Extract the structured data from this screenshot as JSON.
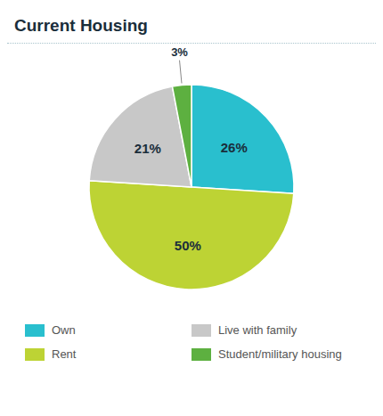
{
  "chart_data": {
    "type": "pie",
    "title": "Current Housing",
    "categories": [
      "Own",
      "Rent",
      "Live with family",
      "Student/military housing"
    ],
    "values": [
      26,
      50,
      21,
      3
    ],
    "value_labels": [
      "26%",
      "50%",
      "21%",
      "3%"
    ],
    "colors": [
      "#29BFCE",
      "#BDD334",
      "#C8C8C8",
      "#5DB040"
    ],
    "data_labels": true,
    "legend": "bottom"
  }
}
